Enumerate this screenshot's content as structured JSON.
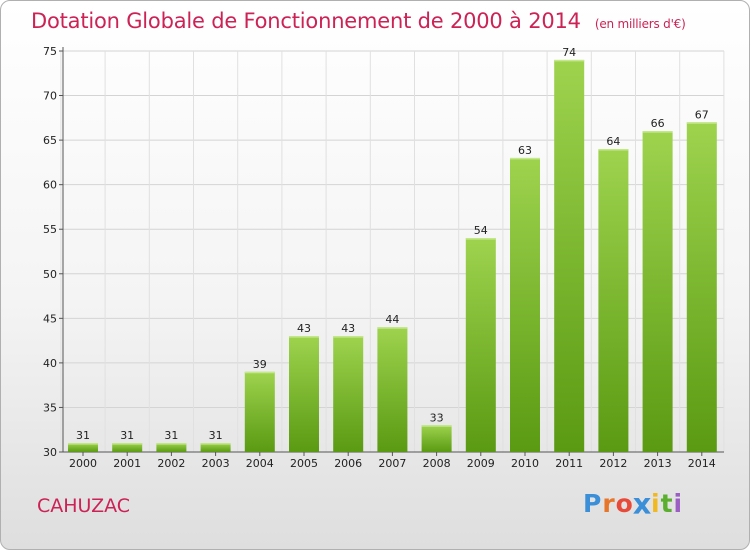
{
  "header": {
    "title": "Dotation Globale de Fonctionnement de 2000 à 2014",
    "unit": "(en milliers d'€)"
  },
  "footer": {
    "commune": "CAHUZAC",
    "logo": [
      "P",
      "r",
      "o",
      "x",
      "i",
      "t",
      "i"
    ],
    "logo_colors": [
      "#3a8fd8",
      "#e8762a",
      "#e84a3a",
      "#3a8fd8",
      "#f2b820",
      "#5ab02e",
      "#9b5fc4"
    ]
  },
  "colors": {
    "bar_light": "#9ed34e",
    "bar_dark": "#5a9a12",
    "title": "#cc2255"
  },
  "chart_data": {
    "type": "bar",
    "title": "Dotation Globale de Fonctionnement de 2000 à 2014",
    "xlabel": "",
    "ylabel": "",
    "categories": [
      "2000",
      "2001",
      "2002",
      "2003",
      "2004",
      "2005",
      "2006",
      "2007",
      "2008",
      "2009",
      "2010",
      "2011",
      "2012",
      "2013",
      "2014"
    ],
    "values": [
      31,
      31,
      31,
      31,
      39,
      43,
      43,
      44,
      33,
      54,
      63,
      74,
      64,
      66,
      67
    ],
    "ylim": [
      30,
      75
    ],
    "yticks": [
      30,
      35,
      40,
      45,
      50,
      55,
      60,
      65,
      70,
      75
    ],
    "grid": true
  }
}
